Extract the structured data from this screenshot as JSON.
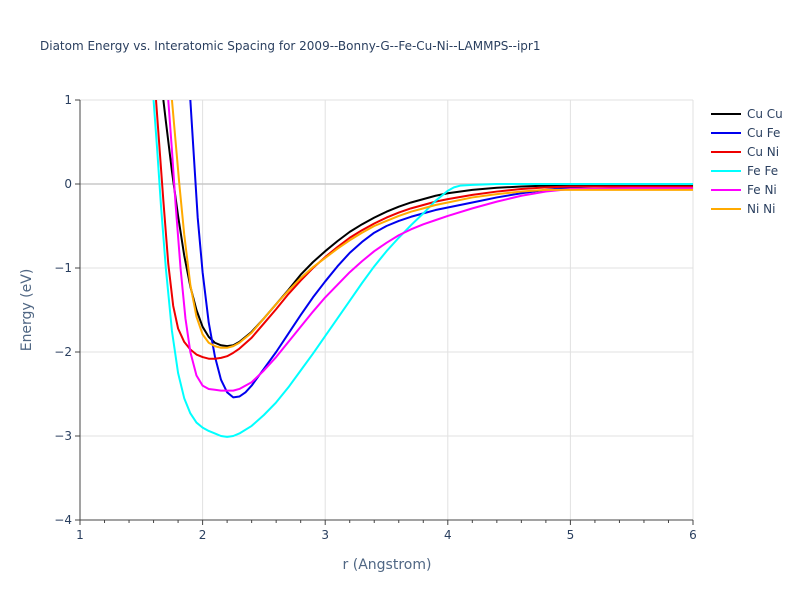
{
  "chart_data": {
    "type": "line",
    "title": "Diatom Energy vs. Interatomic Spacing for 2009--Bonny-G--Fe-Cu-Ni--LAMMPS--ipr1",
    "xlabel": "r (Angstrom)",
    "ylabel": "Energy (eV)",
    "xlim": [
      1,
      6
    ],
    "ylim": [
      -4,
      1
    ],
    "x_ticks": [
      "1",
      "2",
      "3",
      "4",
      "5",
      "6"
    ],
    "y_ticks": [
      "1",
      "0",
      "−1",
      "−2",
      "−3",
      "−4"
    ],
    "grid": true,
    "legend_position": "top-right",
    "series": [
      {
        "name": "Cu Cu",
        "color": "#000000",
        "x": [
          1.68,
          1.7,
          1.75,
          1.8,
          1.85,
          1.9,
          1.95,
          2.0,
          2.05,
          2.1,
          2.15,
          2.2,
          2.25,
          2.3,
          2.4,
          2.5,
          2.6,
          2.7,
          2.8,
          2.9,
          3.0,
          3.1,
          3.2,
          3.3,
          3.4,
          3.5,
          3.6,
          3.7,
          3.8,
          3.9,
          4.0,
          4.2,
          4.4,
          4.6,
          4.8,
          5.0,
          5.5,
          6.0
        ],
        "y": [
          1.0,
          0.75,
          0.15,
          -0.38,
          -0.85,
          -1.22,
          -1.5,
          -1.7,
          -1.82,
          -1.89,
          -1.92,
          -1.93,
          -1.92,
          -1.88,
          -1.76,
          -1.6,
          -1.43,
          -1.26,
          -1.08,
          -0.93,
          -0.8,
          -0.68,
          -0.57,
          -0.48,
          -0.4,
          -0.33,
          -0.27,
          -0.22,
          -0.18,
          -0.14,
          -0.11,
          -0.07,
          -0.045,
          -0.03,
          -0.02,
          -0.02,
          -0.02,
          -0.02
        ]
      },
      {
        "name": "Cu Fe",
        "color": "#0000ee",
        "x": [
          1.9,
          1.93,
          1.96,
          2.0,
          2.05,
          2.1,
          2.15,
          2.2,
          2.25,
          2.3,
          2.35,
          2.4,
          2.5,
          2.6,
          2.7,
          2.8,
          2.9,
          3.0,
          3.1,
          3.2,
          3.3,
          3.4,
          3.5,
          3.6,
          3.7,
          3.8,
          3.9,
          4.0,
          4.2,
          4.4,
          4.6,
          4.8,
          5.0,
          5.2,
          5.5,
          6.0
        ],
        "y": [
          1.0,
          0.3,
          -0.4,
          -1.05,
          -1.65,
          -2.05,
          -2.33,
          -2.48,
          -2.54,
          -2.53,
          -2.48,
          -2.4,
          -2.2,
          -2.0,
          -1.78,
          -1.56,
          -1.35,
          -1.16,
          -0.98,
          -0.82,
          -0.69,
          -0.58,
          -0.5,
          -0.44,
          -0.39,
          -0.35,
          -0.31,
          -0.28,
          -0.22,
          -0.16,
          -0.11,
          -0.07,
          -0.04,
          -0.03,
          -0.03,
          -0.03
        ]
      },
      {
        "name": "Cu Ni",
        "color": "#ee0000",
        "x": [
          1.62,
          1.65,
          1.68,
          1.72,
          1.76,
          1.8,
          1.85,
          1.9,
          1.95,
          2.0,
          2.05,
          2.1,
          2.15,
          2.2,
          2.25,
          2.3,
          2.4,
          2.5,
          2.6,
          2.7,
          2.8,
          2.9,
          3.0,
          3.1,
          3.2,
          3.3,
          3.4,
          3.5,
          3.6,
          3.7,
          3.8,
          3.9,
          4.0,
          4.2,
          4.4,
          4.6,
          4.8,
          5.0,
          5.5,
          6.0
        ],
        "y": [
          1.0,
          0.4,
          -0.2,
          -0.95,
          -1.45,
          -1.72,
          -1.88,
          -1.97,
          -2.03,
          -2.06,
          -2.08,
          -2.08,
          -2.07,
          -2.05,
          -2.01,
          -1.96,
          -1.83,
          -1.66,
          -1.49,
          -1.31,
          -1.15,
          -1.0,
          -0.87,
          -0.75,
          -0.64,
          -0.55,
          -0.47,
          -0.4,
          -0.34,
          -0.29,
          -0.25,
          -0.21,
          -0.18,
          -0.13,
          -0.09,
          -0.06,
          -0.04,
          -0.03,
          -0.03,
          -0.03
        ]
      },
      {
        "name": "Fe Fe",
        "color": "#00ffff",
        "x": [
          1.6,
          1.63,
          1.66,
          1.7,
          1.75,
          1.8,
          1.85,
          1.9,
          1.95,
          2.0,
          2.05,
          2.1,
          2.15,
          2.2,
          2.25,
          2.3,
          2.4,
          2.5,
          2.6,
          2.7,
          2.8,
          2.9,
          3.0,
          3.1,
          3.2,
          3.3,
          3.4,
          3.5,
          3.6,
          3.7,
          3.8,
          3.9,
          4.0,
          4.05,
          4.1,
          4.2,
          4.4,
          4.6,
          5.0,
          6.0
        ],
        "y": [
          1.0,
          0.4,
          -0.25,
          -1.0,
          -1.75,
          -2.25,
          -2.55,
          -2.73,
          -2.84,
          -2.9,
          -2.94,
          -2.97,
          -3.0,
          -3.01,
          -3.0,
          -2.97,
          -2.88,
          -2.75,
          -2.6,
          -2.42,
          -2.22,
          -2.02,
          -1.81,
          -1.6,
          -1.39,
          -1.18,
          -0.98,
          -0.8,
          -0.64,
          -0.49,
          -0.35,
          -0.2,
          -0.08,
          -0.04,
          -0.02,
          -0.01,
          0.0,
          0.0,
          0.0,
          0.0
        ]
      },
      {
        "name": "Fe Ni",
        "color": "#ff00ff",
        "x": [
          1.72,
          1.75,
          1.78,
          1.82,
          1.86,
          1.9,
          1.95,
          2.0,
          2.05,
          2.1,
          2.15,
          2.2,
          2.25,
          2.3,
          2.4,
          2.5,
          2.6,
          2.7,
          2.8,
          2.9,
          3.0,
          3.1,
          3.2,
          3.3,
          3.4,
          3.5,
          3.6,
          3.7,
          3.8,
          3.9,
          4.0,
          4.2,
          4.4,
          4.6,
          4.8,
          5.0,
          5.5,
          6.0
        ],
        "y": [
          1.0,
          0.4,
          -0.25,
          -1.0,
          -1.6,
          -2.0,
          -2.28,
          -2.4,
          -2.44,
          -2.45,
          -2.46,
          -2.46,
          -2.46,
          -2.44,
          -2.36,
          -2.22,
          -2.06,
          -1.88,
          -1.7,
          -1.52,
          -1.35,
          -1.2,
          -1.05,
          -0.92,
          -0.8,
          -0.7,
          -0.61,
          -0.54,
          -0.48,
          -0.43,
          -0.38,
          -0.29,
          -0.21,
          -0.14,
          -0.09,
          -0.06,
          -0.05,
          -0.05
        ]
      },
      {
        "name": "Ni Ni",
        "color": "#ffaa00",
        "x": [
          1.75,
          1.78,
          1.81,
          1.85,
          1.9,
          1.95,
          2.0,
          2.05,
          2.1,
          2.15,
          2.2,
          2.25,
          2.3,
          2.4,
          2.5,
          2.6,
          2.7,
          2.8,
          2.9,
          3.0,
          3.1,
          3.2,
          3.3,
          3.4,
          3.5,
          3.6,
          3.7,
          3.8,
          3.9,
          4.0,
          4.2,
          4.4,
          4.6,
          4.8,
          5.0,
          5.5,
          6.0
        ],
        "y": [
          1.0,
          0.5,
          0.0,
          -0.6,
          -1.2,
          -1.58,
          -1.79,
          -1.89,
          -1.93,
          -1.95,
          -1.95,
          -1.93,
          -1.89,
          -1.77,
          -1.6,
          -1.43,
          -1.27,
          -1.12,
          -0.99,
          -0.88,
          -0.77,
          -0.67,
          -0.58,
          -0.5,
          -0.44,
          -0.38,
          -0.33,
          -0.29,
          -0.25,
          -0.22,
          -0.16,
          -0.12,
          -0.09,
          -0.07,
          -0.07,
          -0.07,
          -0.07
        ]
      }
    ]
  }
}
